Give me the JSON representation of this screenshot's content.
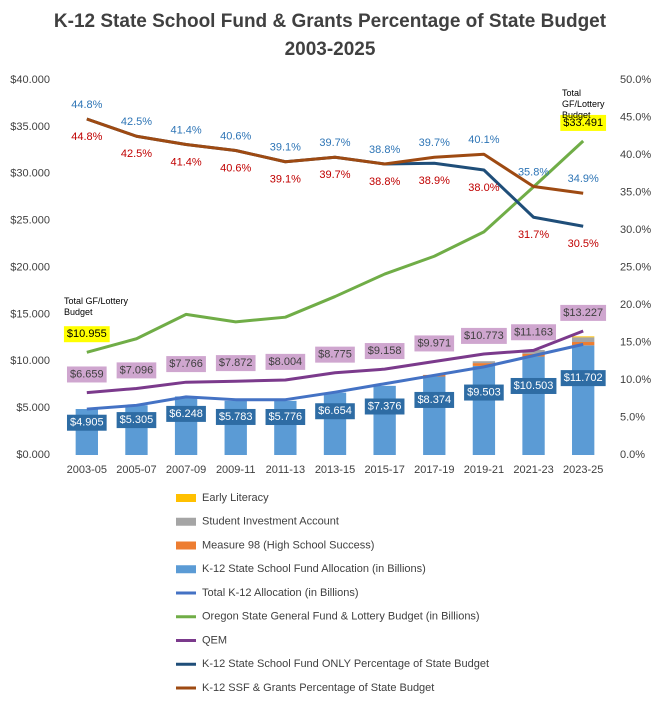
{
  "chart_data": {
    "type": "combo",
    "title": "K-12 State School Fund & Grants Percentage of State Budget 2003-2025",
    "categories": [
      "2003-05",
      "2005-07",
      "2007-09",
      "2009-11",
      "2011-13",
      "2013-15",
      "2015-17",
      "2017-19",
      "2019-21",
      "2021-23",
      "2023-25"
    ],
    "ylim": [
      0,
      40
    ],
    "yticks": [
      {
        "value": 0,
        "label": "$0.000"
      },
      {
        "value": 5,
        "label": "$5.000"
      },
      {
        "value": 10,
        "label": "$10.000"
      },
      {
        "value": 15,
        "label": "$15.000"
      },
      {
        "value": 20,
        "label": "$20.000"
      },
      {
        "value": 25,
        "label": "$25.000"
      },
      {
        "value": 30,
        "label": "$30.000"
      },
      {
        "value": 35,
        "label": "$35.000"
      },
      {
        "value": 40,
        "label": "$40.000"
      }
    ],
    "y2lim": [
      0,
      50
    ],
    "y2ticks": [
      {
        "value": 0,
        "label": "0.0%"
      },
      {
        "value": 5,
        "label": "5.0%"
      },
      {
        "value": 10,
        "label": "10.0%"
      },
      {
        "value": 15,
        "label": "15.0%"
      },
      {
        "value": 20,
        "label": "20.0%"
      },
      {
        "value": 25,
        "label": "25.0%"
      },
      {
        "value": 30,
        "label": "30.0%"
      },
      {
        "value": 35,
        "label": "35.0%"
      },
      {
        "value": 40,
        "label": "40.0%"
      },
      {
        "value": 45,
        "label": "45.0%"
      },
      {
        "value": 50,
        "label": "50.0%"
      }
    ],
    "grid": false,
    "annotations": [
      "Total GF/Lottery Budget",
      "Total GF/Lottery Budget"
    ],
    "series": [
      {
        "name": "Early Literacy",
        "type": "bar",
        "color": "#ffc000",
        "values": [
          null,
          null,
          null,
          null,
          null,
          null,
          null,
          null,
          null,
          null,
          0.1
        ]
      },
      {
        "name": "Student Investment Account",
        "type": "bar",
        "color": "#a5a5a5",
        "values": [
          null,
          null,
          null,
          null,
          null,
          null,
          null,
          null,
          0.2,
          0.4,
          0.5
        ]
      },
      {
        "name": "Measure 98 (High School Success)",
        "type": "bar",
        "color": "#ed7d31",
        "values": [
          null,
          null,
          null,
          null,
          null,
          null,
          null,
          0.17,
          0.3,
          0.3,
          0.35
        ]
      },
      {
        "name": "K-12 State School Fund Allocation (in Billions)",
        "type": "bar",
        "color": "#5b9bd5",
        "label_color": "#ffffff",
        "label_background": "#2e6ca4",
        "values": [
          4.905,
          5.305,
          6.248,
          5.783,
          5.776,
          6.654,
          7.376,
          8.374,
          9.503,
          10.503,
          11.702
        ],
        "value_labels": [
          "$4.905",
          "$5.305",
          "$6.248",
          "$5.783",
          "$5.776",
          "$6.654",
          "$7.376",
          "$8.374",
          "$9.503",
          "$10.503",
          "$11.702"
        ]
      },
      {
        "name": "Total K-12 Allocation (in Billions)",
        "type": "line",
        "color": "#4472c4",
        "values": [
          4.9,
          5.3,
          6.2,
          5.9,
          5.9,
          6.7,
          7.6,
          8.5,
          9.4,
          10.6,
          11.8
        ]
      },
      {
        "name": "Oregon State General Fund & Lottery Budget (in Billions)",
        "type": "line",
        "color": "#70ad47",
        "label_color": "#000000",
        "label_background": "#ffff00",
        "values": [
          10.955,
          12.4,
          15.0,
          14.2,
          14.7,
          16.9,
          19.3,
          21.2,
          23.8,
          28.6,
          33.491
        ],
        "value_labels": [
          "$10.955",
          null,
          null,
          null,
          null,
          null,
          null,
          null,
          null,
          null,
          "$33.491"
        ]
      },
      {
        "name": "QEM",
        "type": "line",
        "color": "#7b3a8c",
        "label_color": "#404040",
        "label_background": "#cfa6cf",
        "values": [
          6.659,
          7.096,
          7.766,
          7.872,
          8.004,
          8.775,
          9.158,
          9.971,
          10.773,
          11.163,
          13.227
        ],
        "value_labels": [
          "$6.659",
          "$7.096",
          "$7.766",
          "$7.872",
          "$8.004",
          "$8.775",
          "$9.158",
          "$9.971",
          "$10.773",
          "$11.163",
          "$13.227"
        ]
      },
      {
        "name": "K-12 State School Fund ONLY Percentage of State Budget",
        "type": "line",
        "axis": "y2",
        "color": "#1f4e79",
        "label_color": "#c00000",
        "values": [
          44.8,
          42.5,
          41.4,
          40.6,
          39.1,
          39.7,
          38.8,
          38.9,
          38.0,
          31.7,
          30.5
        ],
        "value_labels": [
          "44.8%",
          "42.5%",
          "41.4%",
          "40.6%",
          "39.1%",
          "39.7%",
          "38.8%",
          "38.9%",
          "38.0%",
          "31.7%",
          "30.5%"
        ]
      },
      {
        "name": "K-12 SSF & Grants Percentage of State Budget",
        "type": "line",
        "axis": "y2",
        "color": "#9e4a12",
        "label_color": "#2e75b6",
        "values": [
          44.8,
          42.5,
          41.4,
          40.6,
          39.1,
          39.7,
          38.8,
          39.7,
          40.1,
          35.8,
          34.9
        ],
        "value_labels": [
          "44.8%",
          "42.5%",
          "41.4%",
          "40.6%",
          "39.1%",
          "39.7%",
          "38.8%",
          "39.7%",
          "40.1%",
          "35.8%",
          "34.9%"
        ]
      }
    ]
  }
}
